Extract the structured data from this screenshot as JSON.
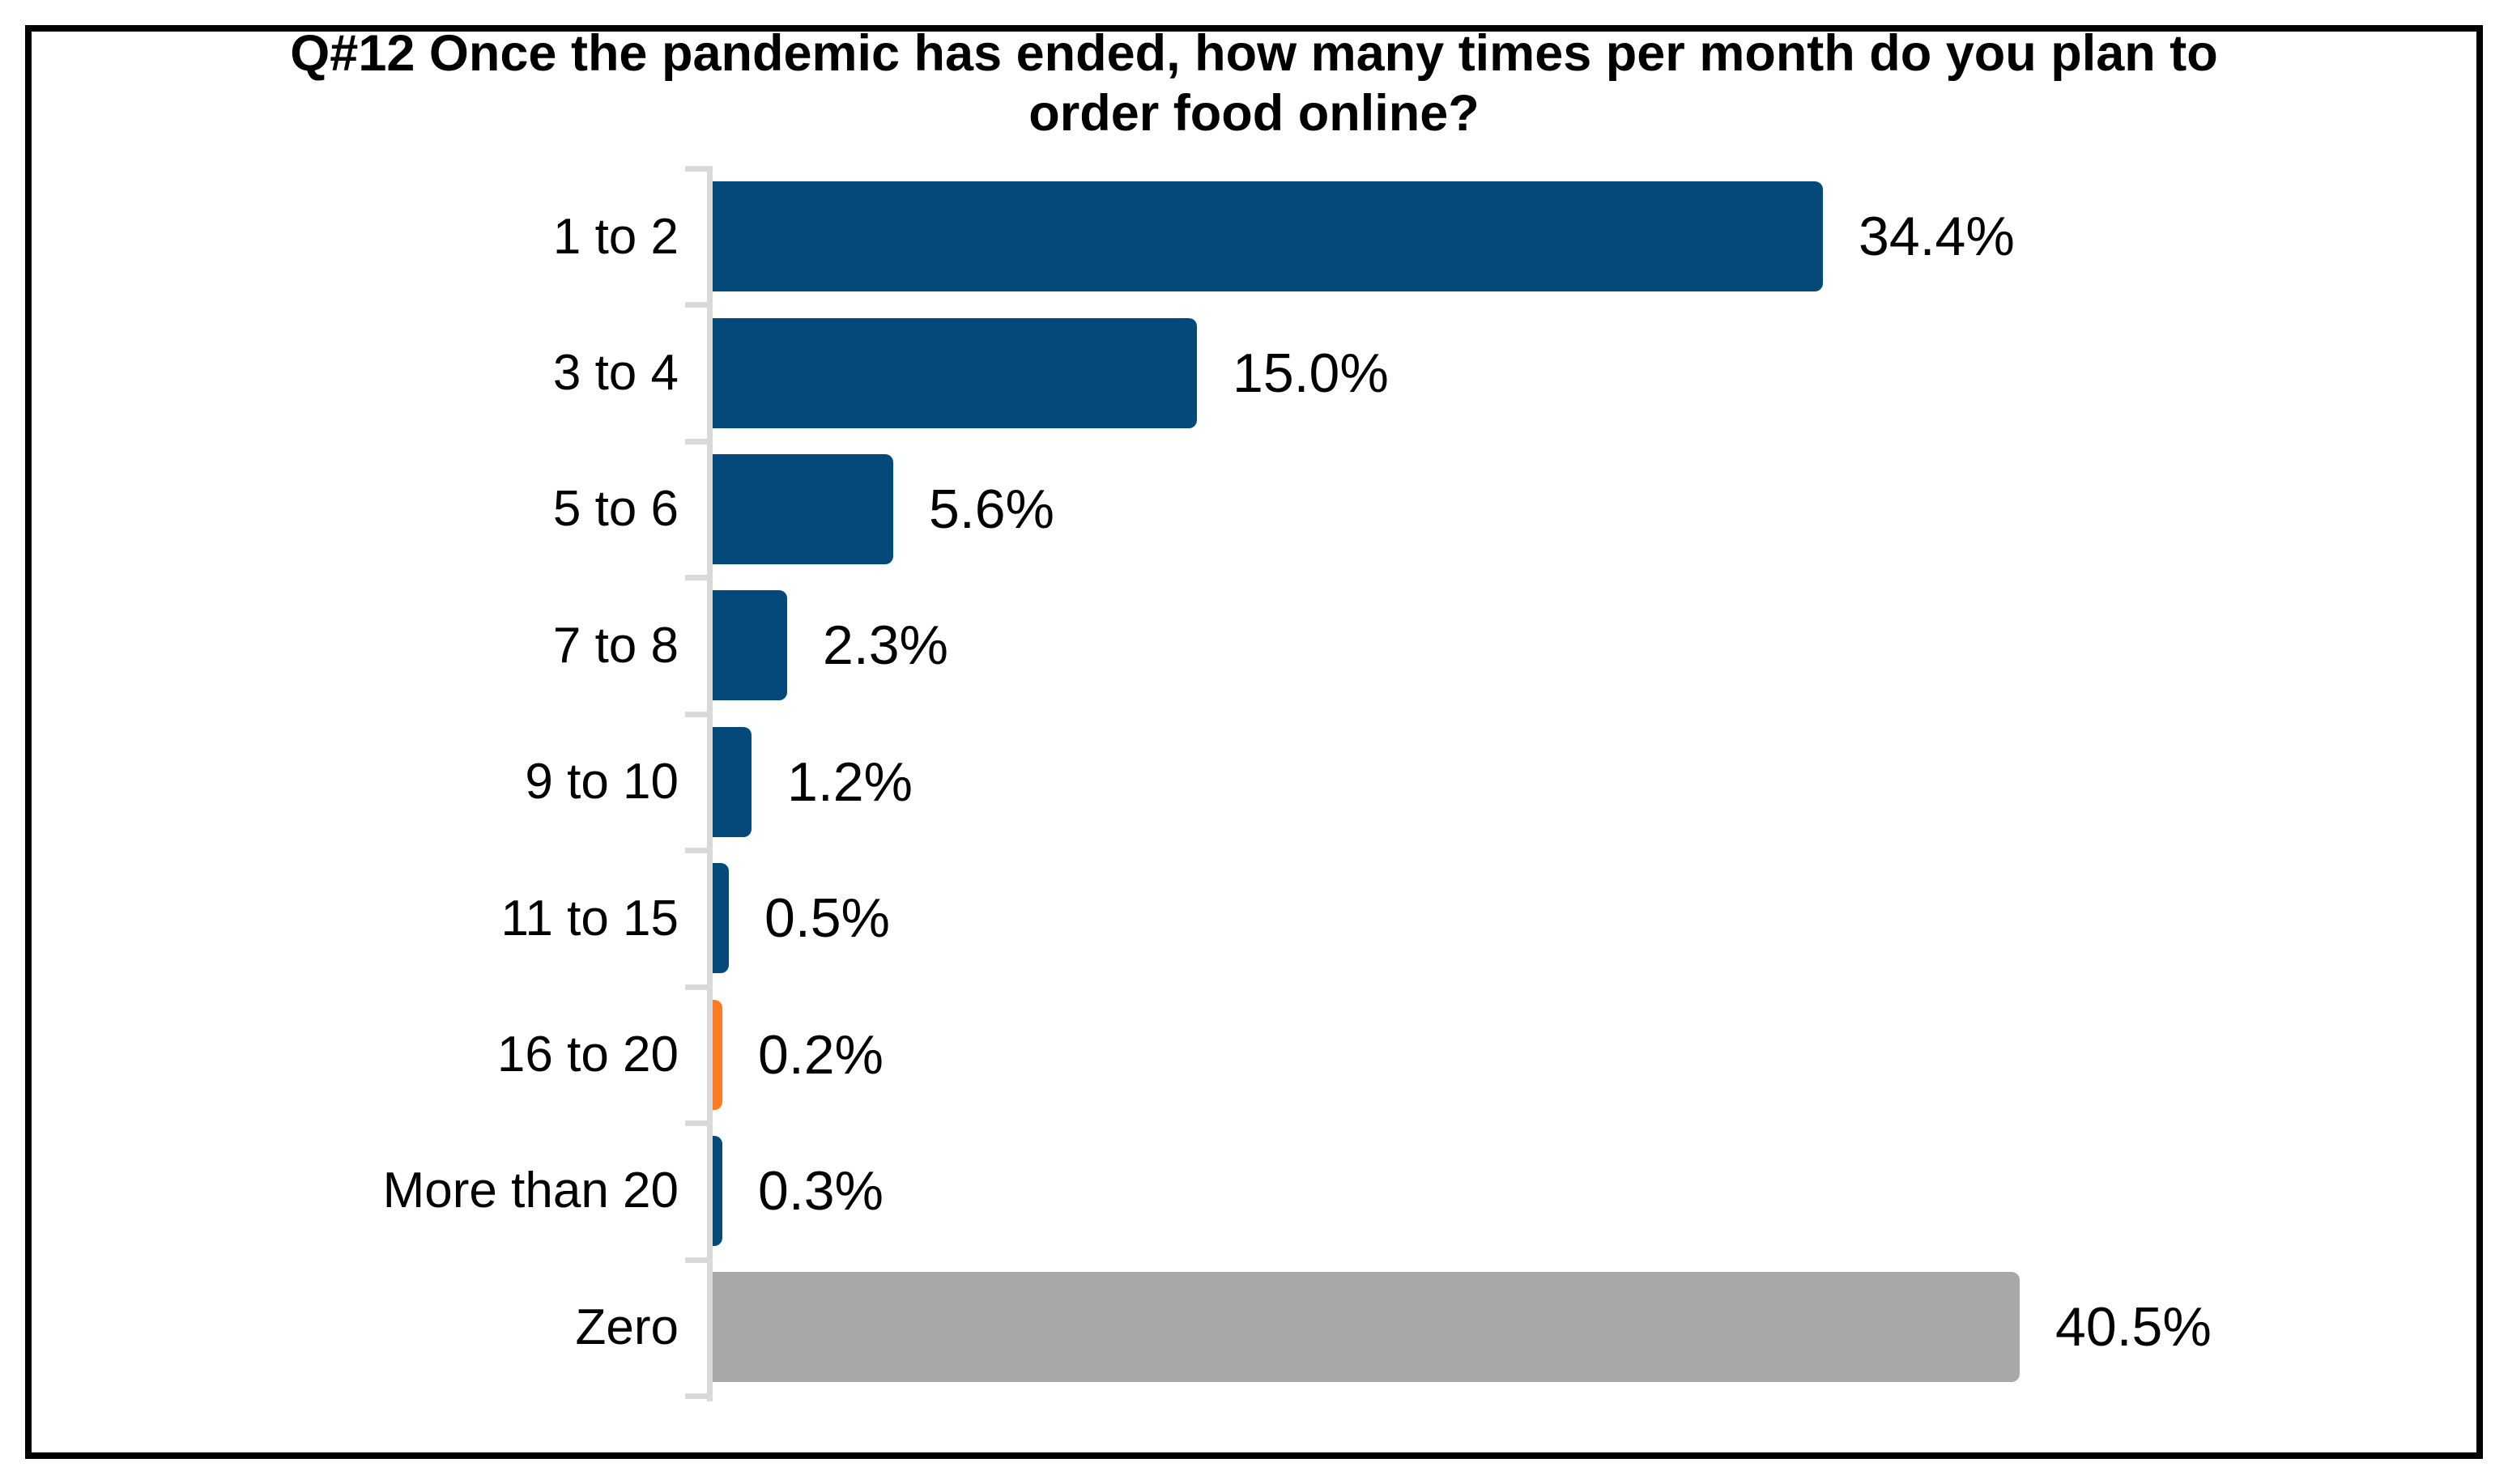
{
  "chart_data": {
    "type": "bar",
    "orientation": "horizontal",
    "title": "Q#12 Once the pandemic has ended, how many times per month do you plan to order food online?",
    "categories": [
      "1 to 2",
      "3 to 4",
      "5 to 6",
      "7 to 8",
      "9 to 10",
      "11 to 15",
      "16 to 20",
      "More than 20",
      "Zero"
    ],
    "values": [
      34.4,
      15.0,
      5.6,
      2.3,
      1.2,
      0.5,
      0.2,
      0.3,
      40.5
    ],
    "value_labels": [
      "34.4%",
      "15.0%",
      "5.6%",
      "2.3%",
      "1.2%",
      "0.5%",
      "0.2%",
      "0.3%",
      "40.5%"
    ],
    "bar_colors": [
      "#04497a",
      "#04497a",
      "#04497a",
      "#04497a",
      "#04497a",
      "#04497a",
      "#fa7d26",
      "#04497a",
      "#a8a8a8"
    ],
    "xlabel": "",
    "ylabel": "",
    "xlim": [
      0,
      45
    ],
    "grid": false,
    "legend": "none",
    "data_labels": "outside-end",
    "colors": {
      "primary_blue": "#04497a",
      "highlight_orange": "#fa7d26",
      "zero_gray": "#a8a8a8",
      "axis_gray": "#d9d9d9",
      "frame_black": "#000000",
      "background": "#ffffff",
      "text": "#000000"
    }
  }
}
